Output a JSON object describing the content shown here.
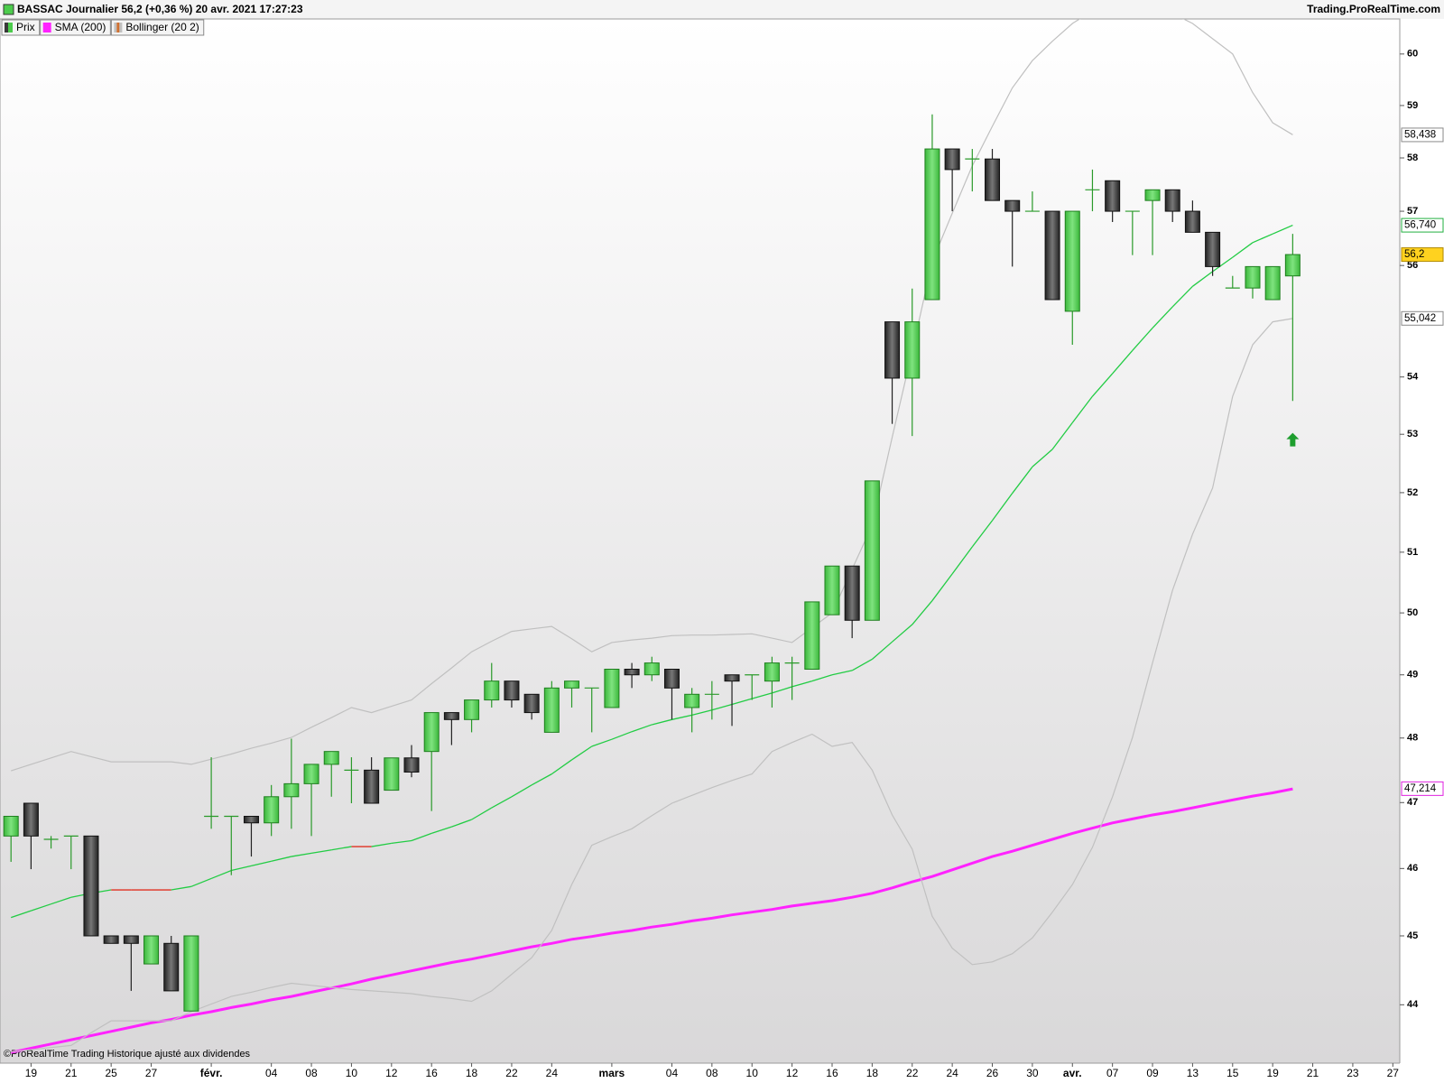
{
  "chart_data": {
    "type": "candlestick",
    "title": "BASSAC Journalier 56,2 (+0,36 %) 20 avr. 2021 17:27:23",
    "source": "Trading.ProRealTime.com",
    "footer": "©ProRealTime Trading  Historique ajusté aux dividendes",
    "log_scale": true,
    "ylim": [
      43.17,
      60.69
    ],
    "yticks": [
      44,
      45,
      46,
      47,
      48,
      49,
      50,
      51,
      52,
      53,
      54,
      56,
      57,
      58,
      59,
      60
    ],
    "categories": [
      null,
      "19",
      null,
      "21",
      null,
      "25",
      null,
      "27",
      null,
      null,
      "févr.",
      null,
      null,
      "04",
      null,
      "08",
      null,
      "10",
      null,
      "12",
      null,
      "16",
      null,
      "18",
      null,
      "22",
      null,
      "24",
      null,
      null,
      "mars",
      null,
      null,
      "04",
      null,
      "08",
      null,
      "10",
      null,
      "12",
      null,
      "16",
      null,
      "18",
      null,
      "22",
      null,
      "24",
      null,
      "26",
      null,
      "30",
      null,
      "avr.",
      null,
      "07",
      null,
      "09",
      null,
      "13",
      null,
      "15",
      null,
      "19",
      null,
      "21",
      null,
      "23",
      null,
      "27"
    ],
    "series": [
      {
        "name": "Prix",
        "up_color": "#4ccc4c",
        "down_color": "#3a3a3a",
        "open": [
          46.49,
          46.99,
          46.44,
          46.49,
          46.49,
          45.0,
          45.0,
          44.59,
          44.89,
          43.91,
          46.79,
          46.79,
          46.79,
          46.69,
          47.09,
          47.29,
          47.59,
          47.5,
          47.5,
          47.19,
          47.69,
          47.79,
          48.4,
          48.29,
          48.6,
          48.9,
          48.69,
          48.09,
          48.79,
          48.79,
          48.48,
          49.09,
          49.0,
          49.09,
          48.48,
          48.69,
          49.0,
          49.0,
          48.9,
          49.19,
          49.09,
          49.97,
          50.77,
          49.88,
          54.98,
          53.98,
          55.38,
          58.17,
          57.98,
          57.98,
          57.2,
          57.0,
          57.0,
          55.17,
          57.4,
          57.57,
          57.0,
          57.2,
          57.4,
          57.0,
          56.61,
          55.59,
          55.59,
          55.38,
          55.81,
          null,
          null,
          null,
          null,
          null
        ],
        "high": [
          46.79,
          46.99,
          46.49,
          46.49,
          46.49,
          45.0,
          45.0,
          45.0,
          45.0,
          45.0,
          47.7,
          46.79,
          46.79,
          47.27,
          47.99,
          47.59,
          47.79,
          47.7,
          47.7,
          47.69,
          47.89,
          48.4,
          48.4,
          48.6,
          49.19,
          48.9,
          48.69,
          48.9,
          48.9,
          48.79,
          49.09,
          49.19,
          49.29,
          49.09,
          48.79,
          48.9,
          49.0,
          49.0,
          49.29,
          49.29,
          50.18,
          50.77,
          50.77,
          52.2,
          54.98,
          55.58,
          58.83,
          58.17,
          58.17,
          58.17,
          57.2,
          57.37,
          57.0,
          57.0,
          57.78,
          57.57,
          57.0,
          57.4,
          57.4,
          57.2,
          56.61,
          55.81,
          55.98,
          55.98,
          56.58,
          null,
          null,
          null,
          null,
          null
        ],
        "low": [
          46.1,
          45.99,
          46.3,
          45.99,
          45.0,
          44.89,
          44.2,
          44.59,
          44.2,
          43.91,
          46.6,
          45.9,
          46.18,
          46.49,
          46.6,
          46.49,
          47.09,
          46.99,
          46.99,
          47.19,
          47.39,
          46.87,
          47.89,
          48.09,
          48.48,
          48.48,
          48.29,
          48.09,
          48.48,
          48.09,
          48.48,
          48.79,
          48.9,
          48.29,
          48.09,
          48.29,
          48.19,
          48.6,
          48.48,
          48.6,
          49.09,
          49.97,
          49.59,
          49.88,
          53.18,
          52.97,
          55.38,
          57.0,
          57.37,
          57.2,
          55.98,
          57.0,
          55.38,
          54.57,
          57.0,
          56.8,
          56.19,
          56.19,
          56.8,
          56.61,
          55.81,
          55.59,
          55.4,
          55.38,
          53.58,
          null,
          null,
          null,
          null,
          null
        ],
        "close": [
          46.79,
          46.49,
          46.44,
          46.49,
          45.0,
          44.89,
          44.89,
          45.0,
          44.2,
          45.0,
          46.79,
          46.79,
          46.69,
          47.09,
          47.29,
          47.59,
          47.79,
          47.5,
          46.99,
          47.69,
          47.47,
          48.4,
          48.29,
          48.6,
          48.9,
          48.6,
          48.4,
          48.79,
          48.9,
          48.79,
          49.09,
          49.0,
          49.19,
          48.79,
          48.69,
          48.69,
          48.9,
          49.0,
          49.19,
          49.19,
          50.18,
          50.77,
          49.88,
          52.2,
          53.98,
          54.98,
          58.17,
          57.78,
          57.98,
          57.2,
          57.0,
          57.0,
          55.38,
          57.0,
          57.4,
          57.0,
          57.0,
          57.4,
          57.0,
          56.61,
          55.98,
          55.59,
          55.98,
          55.98,
          56.2,
          null,
          null,
          null,
          null,
          null
        ]
      },
      {
        "name": "SMA (200)",
        "color": "#ff22ff",
        "values": [
          43.32,
          43.38,
          43.44,
          43.5,
          43.56,
          43.62,
          43.68,
          43.74,
          43.79,
          43.85,
          43.9,
          43.96,
          44.01,
          44.07,
          44.12,
          44.18,
          44.24,
          44.3,
          44.37,
          44.43,
          44.49,
          44.55,
          44.61,
          44.66,
          44.72,
          44.78,
          44.84,
          44.89,
          44.95,
          44.99,
          45.04,
          45.08,
          45.13,
          45.17,
          45.22,
          45.26,
          45.31,
          45.35,
          45.39,
          45.44,
          45.48,
          45.52,
          45.57,
          45.63,
          45.71,
          45.8,
          45.88,
          45.98,
          46.08,
          46.18,
          46.26,
          46.35,
          46.44,
          46.53,
          46.61,
          46.69,
          46.75,
          46.81,
          46.86,
          46.92,
          46.98,
          47.04,
          47.1,
          47.15,
          47.21,
          null,
          null,
          null,
          null,
          null
        ]
      },
      {
        "name": "Bollinger (20 2)",
        "color": "#c0c0c0",
        "upper": [
          47.49,
          47.59,
          47.69,
          47.79,
          47.71,
          47.63,
          47.63,
          47.63,
          47.63,
          47.59,
          47.67,
          47.75,
          47.84,
          47.92,
          48.01,
          48.17,
          48.32,
          48.48,
          48.4,
          48.5,
          48.6,
          48.86,
          49.11,
          49.37,
          49.54,
          49.7,
          49.74,
          49.78,
          49.58,
          49.37,
          49.52,
          49.56,
          49.59,
          49.63,
          49.64,
          49.64,
          49.65,
          49.66,
          49.59,
          49.52,
          49.76,
          50.0,
          50.72,
          51.45,
          52.95,
          54.46,
          56.07,
          56.96,
          57.85,
          58.6,
          59.34,
          59.87,
          60.25,
          60.6,
          60.85,
          61.0,
          61.05,
          61.0,
          60.8,
          60.6,
          60.3,
          60.0,
          59.25,
          58.67,
          58.44,
          null,
          null,
          null,
          null,
          null
        ],
        "lower": [
          43.33,
          43.36,
          43.39,
          43.42,
          43.6,
          43.77,
          43.77,
          43.77,
          43.77,
          43.9,
          44.01,
          44.12,
          44.18,
          44.25,
          44.31,
          44.28,
          44.25,
          44.22,
          44.2,
          44.18,
          44.16,
          44.12,
          44.09,
          44.05,
          44.2,
          44.44,
          44.68,
          45.08,
          45.76,
          46.35,
          46.48,
          46.6,
          46.8,
          46.99,
          47.11,
          47.23,
          47.34,
          47.44,
          47.79,
          47.93,
          48.06,
          47.87,
          47.93,
          47.5,
          46.81,
          46.29,
          45.29,
          44.82,
          44.58,
          44.62,
          44.74,
          44.97,
          45.35,
          45.76,
          46.32,
          47.09,
          48.01,
          49.19,
          50.37,
          51.3,
          52.08,
          53.66,
          54.57,
          54.98,
          55.04,
          null,
          null,
          null,
          null,
          null
        ]
      },
      {
        "color": "#22cc44",
        "down_color": "#e03020",
        "values": [
          45.27,
          45.37,
          45.47,
          45.57,
          45.63,
          45.68,
          45.68,
          45.68,
          45.68,
          45.73,
          45.85,
          45.97,
          46.04,
          46.11,
          46.18,
          46.23,
          46.28,
          46.33,
          46.33,
          46.38,
          46.42,
          46.53,
          46.63,
          46.74,
          46.92,
          47.09,
          47.27,
          47.44,
          47.66,
          47.87,
          47.98,
          48.1,
          48.21,
          48.29,
          48.36,
          48.44,
          48.53,
          48.62,
          48.71,
          48.81,
          48.9,
          49.0,
          49.07,
          49.25,
          49.53,
          49.81,
          50.2,
          50.64,
          51.09,
          51.53,
          51.99,
          52.44,
          52.74,
          53.2,
          53.66,
          54.06,
          54.47,
          54.87,
          55.25,
          55.62,
          55.89,
          56.15,
          56.42,
          56.58,
          56.74,
          null,
          null,
          null,
          null,
          null
        ]
      }
    ],
    "price_labels": [
      {
        "value": 58.438,
        "label": "58,438",
        "color": "#8a8a8a",
        "background": "#ffffff"
      },
      {
        "value": 56.74,
        "label": "56,740",
        "color": "#22b040",
        "background": "#ffffff"
      },
      {
        "value": 56.2,
        "label": "56,2",
        "color": "#000000",
        "background": "#ffd21f"
      },
      {
        "value": 55.042,
        "label": "55,042",
        "color": "#8a8a8a",
        "background": "#ffffff"
      },
      {
        "value": 47.214,
        "label": "47,214",
        "color": "#e020e0",
        "background": "#ffffff"
      }
    ],
    "up_arrow": {
      "category_index": 64,
      "value": 52.9,
      "color": "#1e9e2e"
    }
  }
}
